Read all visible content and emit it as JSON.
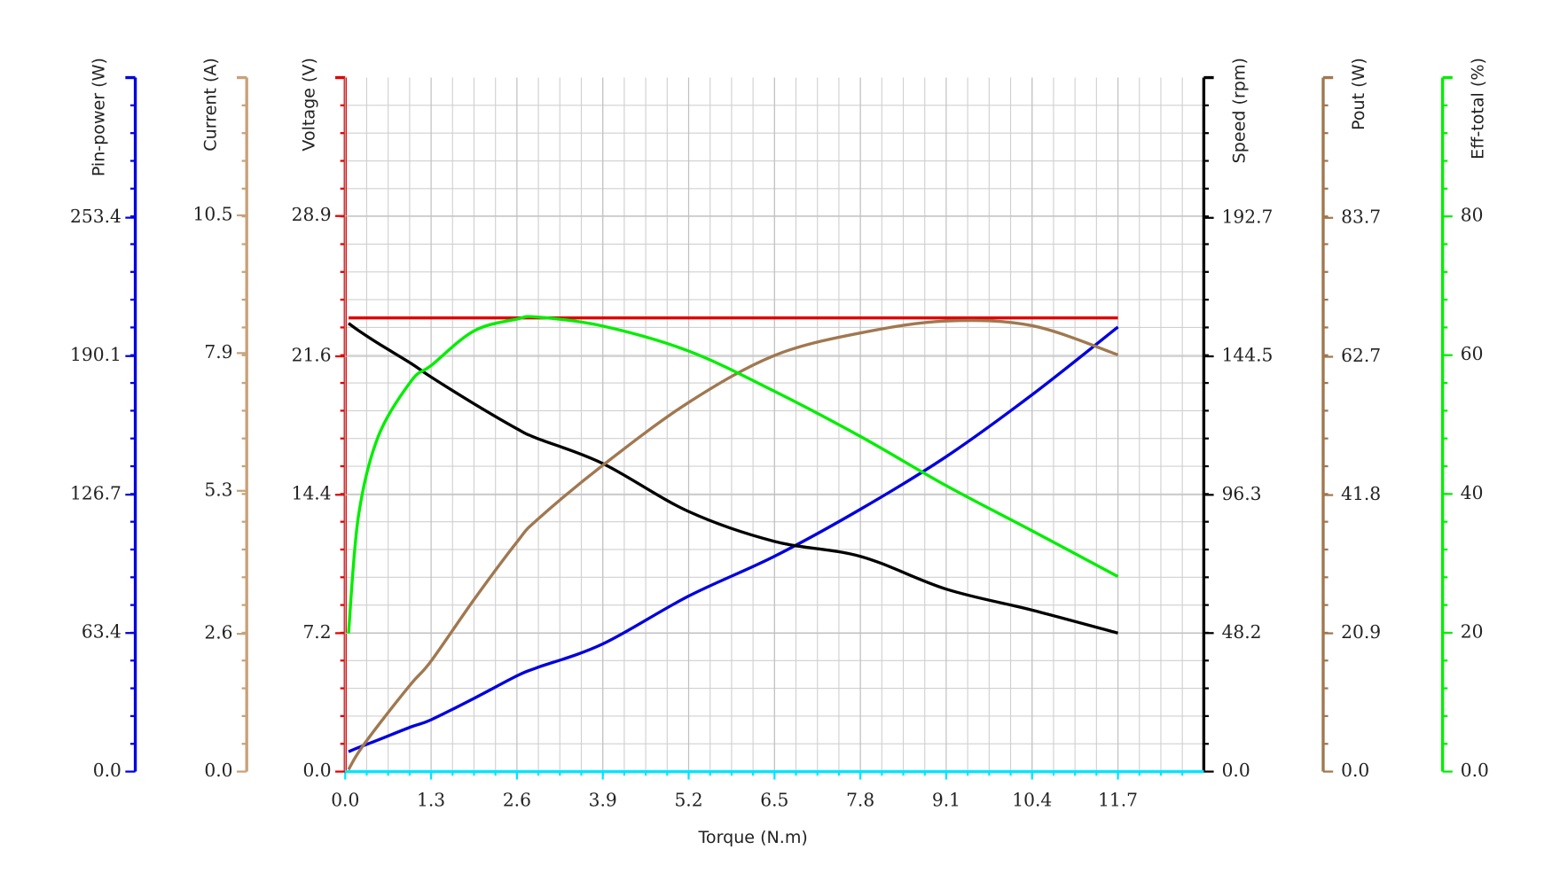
{
  "chart_data": {
    "type": "line",
    "xlabel": "Torque (N.m)",
    "xlim": [
      0,
      13
    ],
    "xticks": [
      {
        "value": 0,
        "label": "0.0"
      },
      1.3,
      2.6,
      3.9,
      5.2,
      6.5,
      7.8,
      9.1,
      10.4,
      11.7
    ],
    "x": [
      0.05,
      0.2,
      0.5,
      1,
      1.3,
      1.95,
      2.6,
      2.9,
      3.9,
      5.2,
      6.5,
      7.8,
      9.1,
      10.4,
      11.7
    ],
    "grid": true,
    "axes": [
      {
        "label": "Pin-power (W)",
        "color": "#0000dd",
        "ylim": [
          0,
          317.5
        ],
        "yticks": [
          {
            "value": 0,
            "label": "0.0"
          },
          63.4,
          126.7,
          190.1,
          253.4
        ],
        "values": [
          9.1,
          11,
          14.5,
          20.5,
          23.7,
          33.5,
          43.8,
          47.5,
          58.4,
          80.3,
          98.5,
          120.0,
          144.1,
          172.4,
          203.4
        ]
      },
      {
        "label": "Current (A)",
        "color": "#c8a27a",
        "ylim": [
          0,
          13.1
        ],
        "yticks": [
          {
            "value": 0,
            "label": "0.0"
          },
          2.6,
          5.3,
          7.9,
          10.5
        ]
      },
      {
        "label": "Voltage (V)",
        "color": "#e00000",
        "ylim": [
          0,
          36.1
        ],
        "yticks": [
          {
            "value": 0,
            "label": "0.0"
          },
          7.2,
          14.4,
          21.6,
          28.9
        ],
        "values": [
          23.6,
          23.6,
          23.6,
          23.6,
          23.6,
          23.6,
          23.6,
          23.6,
          23.6,
          23.6,
          23.6,
          23.6,
          23.6,
          23.6,
          23.6
        ]
      },
      {
        "label": "Speed (rpm)",
        "color": "#000000",
        "ylim": [
          0,
          241.5
        ],
        "yticks": [
          {
            "value": 0,
            "label": "0.0"
          },
          48.2,
          96.3,
          144.5,
          192.7
        ],
        "values": [
          156,
          153.5,
          149,
          142,
          137.3,
          128,
          119.3,
          116,
          107.2,
          90.5,
          80.1,
          74.9,
          63.5,
          56.2,
          48.2
        ]
      },
      {
        "label": "Pout (W)",
        "color": "#a07850",
        "ylim": [
          0,
          104.9
        ],
        "yticks": [
          {
            "value": 0,
            "label": "0.0"
          },
          20.9,
          41.8,
          62.7,
          83.7
        ],
        "values": [
          0.3,
          2.9,
          7.0,
          13.3,
          16.7,
          26.0,
          34.7,
          38.0,
          46.3,
          55.8,
          62.9,
          66.3,
          68.1,
          67.4,
          63.0
        ]
      },
      {
        "label": "Eff-total (%)",
        "color": "#00ee00",
        "ylim": [
          0,
          100
        ],
        "yticks": [
          {
            "value": 0,
            "label": "0.0"
          },
          20,
          40,
          60,
          80
        ],
        "values": [
          19.9,
          36.8,
          48.3,
          56.3,
          58.5,
          63.5,
          65.2,
          65.5,
          64.2,
          60.6,
          54.8,
          48.3,
          41.2,
          34.7,
          28.1
        ]
      }
    ]
  }
}
